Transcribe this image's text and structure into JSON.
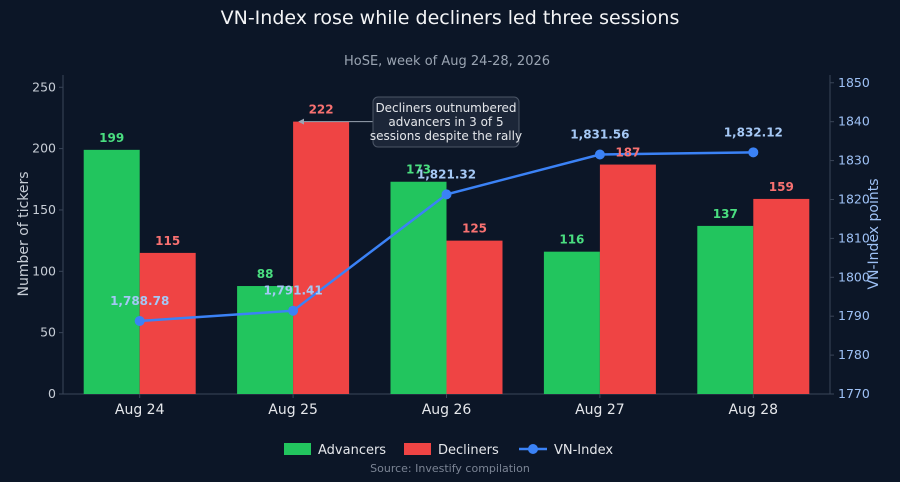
{
  "chart_data": {
    "type": "bar",
    "title": "VN-Index rose while decliners led three sessions",
    "subtitle": "HoSE, week of Aug 24-28, 2026",
    "categories": [
      "Aug 24",
      "Aug 25",
      "Aug 26",
      "Aug 27",
      "Aug 28"
    ],
    "series": [
      {
        "name": "Advancers",
        "type": "bar",
        "axis": "left",
        "color": "#22c55e",
        "label_color": "#4ade80",
        "values": [
          199,
          88,
          173,
          116,
          137
        ],
        "labels": [
          "199",
          "88",
          "173",
          "116",
          "137"
        ]
      },
      {
        "name": "Decliners",
        "type": "bar",
        "axis": "left",
        "color": "#ef4444",
        "label_color": "#f87171",
        "values": [
          115,
          222,
          125,
          187,
          159
        ],
        "labels": [
          "115",
          "222",
          "125",
          "187",
          "159"
        ]
      },
      {
        "name": "VN-Index",
        "type": "line",
        "axis": "right",
        "color": "#3b82f6",
        "label_color": "#a5c8f5",
        "values": [
          1788.78,
          1791.41,
          1821.32,
          1831.56,
          1832.12
        ],
        "labels": [
          "1,788.78",
          "1,791.41",
          "1,821.32",
          "1,831.56",
          "1,832.12"
        ]
      }
    ],
    "ylabel": "Number of tickers",
    "ylim": [
      0,
      260
    ],
    "yticks": [
      0,
      50,
      100,
      150,
      200,
      250
    ],
    "y2label": "VN-Index points",
    "y2lim": [
      1770,
      1852
    ],
    "y2ticks": [
      1770,
      1780,
      1790,
      1800,
      1810,
      1820,
      1830,
      1840,
      1850
    ],
    "grid": false,
    "legend_position": "bottom-center",
    "annotation": {
      "lines": [
        "Decliners outnumbered",
        "advancers in 3 of 5",
        "sessions despite the rally"
      ],
      "target_category": "Aug 25",
      "target_series": "Decliners"
    },
    "source": "Source: Investify compilation"
  }
}
